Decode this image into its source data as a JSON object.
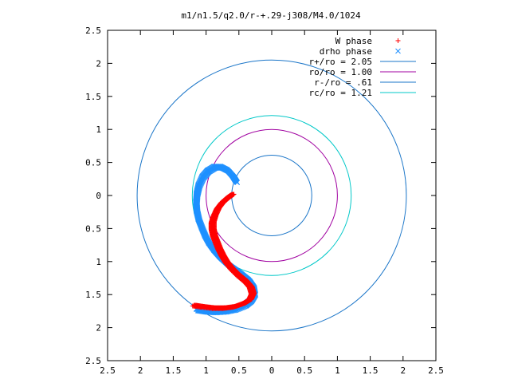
{
  "chart_data": {
    "type": "scatter",
    "title": "m1/n1.5/q2.0/r-+.29-j308/M4.0/1024",
    "xlim": [
      -2.5,
      2.5
    ],
    "ylim": [
      -2.5,
      2.5
    ],
    "x_ticks": [
      {
        "value": -2.5,
        "label": "2.5"
      },
      {
        "value": -2,
        "label": "2"
      },
      {
        "value": -1.5,
        "label": "1.5"
      },
      {
        "value": -1,
        "label": "1"
      },
      {
        "value": -0.5,
        "label": "0.5"
      },
      {
        "value": 0,
        "label": "0"
      },
      {
        "value": 0.5,
        "label": "0.5"
      },
      {
        "value": 1,
        "label": "1"
      },
      {
        "value": 1.5,
        "label": "1.5"
      },
      {
        "value": 2,
        "label": "2"
      },
      {
        "value": 2.5,
        "label": "2.5"
      }
    ],
    "y_ticks": [
      {
        "value": 2.5,
        "label": "2.5"
      },
      {
        "value": 2,
        "label": "2"
      },
      {
        "value": 1.5,
        "label": "1.5"
      },
      {
        "value": 1,
        "label": "1"
      },
      {
        "value": 0.5,
        "label": "0.5"
      },
      {
        "value": 0,
        "label": "0"
      },
      {
        "value": -0.5,
        "label": "0.5"
      },
      {
        "value": -1,
        "label": "1"
      },
      {
        "value": -1.5,
        "label": "1.5"
      },
      {
        "value": -2,
        "label": "2"
      },
      {
        "value": -2.5,
        "label": "2.5"
      }
    ],
    "grid": false,
    "legend_position": "top-right",
    "series": [
      {
        "name": "W phase",
        "kind": "points",
        "marker": "+",
        "color": "#ff0000",
        "x": [
          -1.18,
          -1.05,
          -0.88,
          -0.72,
          -0.57,
          -0.43,
          -0.33,
          -0.29,
          -0.32,
          -0.4,
          -0.51,
          -0.61,
          -0.69,
          -0.75,
          -0.8,
          -0.84,
          -0.88,
          -0.9,
          -0.9,
          -0.87,
          -0.82,
          -0.75,
          -0.67,
          -0.6
        ],
        "y": [
          -1.66,
          -1.68,
          -1.7,
          -1.7,
          -1.68,
          -1.63,
          -1.57,
          -1.48,
          -1.38,
          -1.29,
          -1.2,
          -1.1,
          -1.0,
          -0.9,
          -0.8,
          -0.7,
          -0.6,
          -0.5,
          -0.4,
          -0.3,
          -0.19,
          -0.1,
          -0.03,
          0.02
        ]
      },
      {
        "name": "drho phase",
        "kind": "points",
        "marker": "x",
        "color": "#1e90ff",
        "x": [
          -1.15,
          -1.02,
          -0.88,
          -0.72,
          -0.57,
          -0.42,
          -0.33,
          -0.27,
          -0.29,
          -0.36,
          -0.46,
          -0.57,
          -0.68,
          -0.79,
          -0.88,
          -0.96,
          -1.02,
          -1.07,
          -1.12,
          -1.15,
          -1.16,
          -1.15,
          -1.12,
          -1.06,
          -0.98,
          -0.88,
          -0.78,
          -0.68,
          -0.6,
          -0.55
        ],
        "y": [
          -1.72,
          -1.74,
          -1.75,
          -1.74,
          -1.71,
          -1.65,
          -1.58,
          -1.48,
          -1.37,
          -1.27,
          -1.19,
          -1.11,
          -1.03,
          -0.93,
          -0.83,
          -0.72,
          -0.61,
          -0.49,
          -0.36,
          -0.23,
          -0.1,
          0.03,
          0.16,
          0.29,
          0.38,
          0.44,
          0.44,
          0.39,
          0.3,
          0.22
        ]
      },
      {
        "name": "r+/ro = 2.05",
        "kind": "circle",
        "radius": 2.05,
        "color": "#1a75c8"
      },
      {
        "name": "ro/ro = 1.00",
        "kind": "circle",
        "radius": 1.0,
        "color": "#a000a0"
      },
      {
        "name": "r-/ro = .61",
        "kind": "circle",
        "radius": 0.61,
        "color": "#1a75c8"
      },
      {
        "name": "rc/ro = 1.21",
        "kind": "circle",
        "radius": 1.21,
        "color": "#00c8c8"
      }
    ]
  }
}
